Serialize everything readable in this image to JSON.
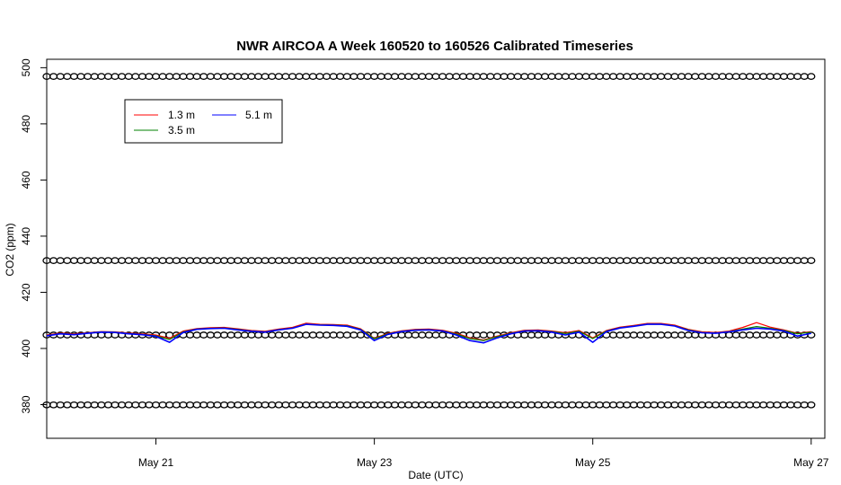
{
  "chart_data": {
    "type": "line",
    "title": "NWR AIRCOA A  Week 160520 to 160526  Calibrated Timeseries",
    "xlabel": "Date (UTC)",
    "ylabel": "CO2 (ppm)",
    "x_ticks": [
      "May 21",
      "May 23",
      "May 25",
      "May 27"
    ],
    "y_ticks": [
      "380",
      "400",
      "420",
      "440",
      "460",
      "480",
      "500"
    ],
    "xlim": [
      "2016-05-20T00:00",
      "2016-05-27T03:00"
    ],
    "ylim": [
      368,
      503
    ],
    "legend": {
      "position": "top-left",
      "entries": [
        "1.3 m",
        "3.5 m",
        "5.1 m"
      ]
    },
    "series": [
      {
        "name": "1.3 m",
        "color": "#ff0000",
        "points": [
          [
            "2016-05-20T00:00",
            404.8
          ],
          [
            "2016-05-20T03:00",
            405.5
          ],
          [
            "2016-05-20T06:00",
            405.2
          ],
          [
            "2016-05-20T09:00",
            405.6
          ],
          [
            "2016-05-20T12:00",
            406.0
          ],
          [
            "2016-05-20T15:00",
            405.9
          ],
          [
            "2016-05-20T18:00",
            405.5
          ],
          [
            "2016-05-20T21:00",
            405.2
          ],
          [
            "2016-05-21T00:00",
            404.8
          ],
          [
            "2016-05-21T03:00",
            403.6
          ],
          [
            "2016-05-21T06:00",
            406.2
          ],
          [
            "2016-05-21T09:00",
            407.1
          ],
          [
            "2016-05-21T12:00",
            407.4
          ],
          [
            "2016-05-21T15:00",
            407.5
          ],
          [
            "2016-05-21T18:00",
            407.0
          ],
          [
            "2016-05-21T21:00",
            406.4
          ],
          [
            "2016-05-22T00:00",
            406.1
          ],
          [
            "2016-05-22T03:00",
            406.9
          ],
          [
            "2016-05-22T06:00",
            407.5
          ],
          [
            "2016-05-22T09:00",
            409.0
          ],
          [
            "2016-05-22T12:00",
            408.6
          ],
          [
            "2016-05-22T15:00",
            408.5
          ],
          [
            "2016-05-22T18:00",
            408.3
          ],
          [
            "2016-05-22T21:00",
            407.0
          ],
          [
            "2016-05-23T00:00",
            403.6
          ],
          [
            "2016-05-23T03:00",
            405.4
          ],
          [
            "2016-05-23T06:00",
            406.3
          ],
          [
            "2016-05-23T09:00",
            406.8
          ],
          [
            "2016-05-23T12:00",
            406.9
          ],
          [
            "2016-05-23T15:00",
            406.5
          ],
          [
            "2016-05-23T18:00",
            405.4
          ],
          [
            "2016-05-23T21:00",
            403.8
          ],
          [
            "2016-05-24T00:00",
            403.0
          ],
          [
            "2016-05-24T03:00",
            404.4
          ],
          [
            "2016-05-24T06:00",
            405.6
          ],
          [
            "2016-05-24T09:00",
            406.5
          ],
          [
            "2016-05-24T12:00",
            406.6
          ],
          [
            "2016-05-24T15:00",
            406.2
          ],
          [
            "2016-05-24T18:00",
            405.6
          ],
          [
            "2016-05-24T21:00",
            406.4
          ],
          [
            "2016-05-25T00:00",
            403.8
          ],
          [
            "2016-05-25T03:00",
            406.4
          ],
          [
            "2016-05-25T06:00",
            407.6
          ],
          [
            "2016-05-25T09:00",
            408.2
          ],
          [
            "2016-05-25T12:00",
            408.9
          ],
          [
            "2016-05-25T15:00",
            408.9
          ],
          [
            "2016-05-25T18:00",
            408.3
          ],
          [
            "2016-05-25T21:00",
            406.8
          ],
          [
            "2016-05-26T00:00",
            405.9
          ],
          [
            "2016-05-26T03:00",
            405.7
          ],
          [
            "2016-05-26T06:00",
            406.2
          ],
          [
            "2016-05-26T09:00",
            407.5
          ],
          [
            "2016-05-26T12:00",
            409.2
          ],
          [
            "2016-05-26T15:00",
            407.6
          ],
          [
            "2016-05-26T18:00",
            406.6
          ],
          [
            "2016-05-26T21:00",
            405.4
          ],
          [
            "2016-05-27T00:00",
            406.0
          ]
        ]
      },
      {
        "name": "3.5 m",
        "color": "#008000",
        "points": [
          [
            "2016-05-20T00:00",
            404.6
          ],
          [
            "2016-05-20T03:00",
            405.3
          ],
          [
            "2016-05-20T06:00",
            405.0
          ],
          [
            "2016-05-20T09:00",
            405.5
          ],
          [
            "2016-05-20T12:00",
            405.9
          ],
          [
            "2016-05-20T15:00",
            405.8
          ],
          [
            "2016-05-20T18:00",
            405.3
          ],
          [
            "2016-05-20T21:00",
            405.0
          ],
          [
            "2016-05-21T00:00",
            404.5
          ],
          [
            "2016-05-21T03:00",
            403.2
          ],
          [
            "2016-05-21T06:00",
            405.9
          ],
          [
            "2016-05-21T09:00",
            406.9
          ],
          [
            "2016-05-21T12:00",
            407.2
          ],
          [
            "2016-05-21T15:00",
            407.3
          ],
          [
            "2016-05-21T18:00",
            406.8
          ],
          [
            "2016-05-21T21:00",
            406.2
          ],
          [
            "2016-05-22T00:00",
            405.9
          ],
          [
            "2016-05-22T03:00",
            406.7
          ],
          [
            "2016-05-22T06:00",
            407.3
          ],
          [
            "2016-05-22T09:00",
            408.7
          ],
          [
            "2016-05-22T12:00",
            408.4
          ],
          [
            "2016-05-22T15:00",
            408.3
          ],
          [
            "2016-05-22T18:00",
            408.1
          ],
          [
            "2016-05-22T21:00",
            406.8
          ],
          [
            "2016-05-23T00:00",
            403.4
          ],
          [
            "2016-05-23T03:00",
            405.2
          ],
          [
            "2016-05-23T06:00",
            406.1
          ],
          [
            "2016-05-23T09:00",
            406.6
          ],
          [
            "2016-05-23T12:00",
            406.7
          ],
          [
            "2016-05-23T15:00",
            406.3
          ],
          [
            "2016-05-23T18:00",
            405.1
          ],
          [
            "2016-05-23T21:00",
            403.5
          ],
          [
            "2016-05-24T00:00",
            402.8
          ],
          [
            "2016-05-24T03:00",
            404.2
          ],
          [
            "2016-05-24T06:00",
            405.4
          ],
          [
            "2016-05-24T09:00",
            406.3
          ],
          [
            "2016-05-24T12:00",
            406.4
          ],
          [
            "2016-05-24T15:00",
            406.0
          ],
          [
            "2016-05-24T18:00",
            405.3
          ],
          [
            "2016-05-24T21:00",
            406.1
          ],
          [
            "2016-05-25T00:00",
            403.5
          ],
          [
            "2016-05-25T03:00",
            406.2
          ],
          [
            "2016-05-25T06:00",
            407.4
          ],
          [
            "2016-05-25T09:00",
            408.0
          ],
          [
            "2016-05-25T12:00",
            408.7
          ],
          [
            "2016-05-25T15:00",
            408.7
          ],
          [
            "2016-05-25T18:00",
            408.1
          ],
          [
            "2016-05-25T21:00",
            406.6
          ],
          [
            "2016-05-26T00:00",
            405.7
          ],
          [
            "2016-05-26T03:00",
            405.5
          ],
          [
            "2016-05-26T06:00",
            406.0
          ],
          [
            "2016-05-26T09:00",
            406.9
          ],
          [
            "2016-05-26T12:00",
            407.8
          ],
          [
            "2016-05-26T15:00",
            407.2
          ],
          [
            "2016-05-26T18:00",
            406.4
          ],
          [
            "2016-05-26T21:00",
            405.2
          ],
          [
            "2016-05-27T00:00",
            405.8
          ]
        ]
      },
      {
        "name": "5.1 m",
        "color": "#0000ff",
        "points": [
          [
            "2016-05-20T00:00",
            404.5
          ],
          [
            "2016-05-20T03:00",
            405.2
          ],
          [
            "2016-05-20T06:00",
            404.9
          ],
          [
            "2016-05-20T09:00",
            405.4
          ],
          [
            "2016-05-20T12:00",
            405.8
          ],
          [
            "2016-05-20T15:00",
            405.7
          ],
          [
            "2016-05-20T18:00",
            405.2
          ],
          [
            "2016-05-20T21:00",
            404.9
          ],
          [
            "2016-05-21T00:00",
            404.3
          ],
          [
            "2016-05-21T03:00",
            402.2
          ],
          [
            "2016-05-21T06:00",
            405.7
          ],
          [
            "2016-05-21T09:00",
            406.8
          ],
          [
            "2016-05-21T12:00",
            407.1
          ],
          [
            "2016-05-21T15:00",
            407.2
          ],
          [
            "2016-05-21T18:00",
            406.6
          ],
          [
            "2016-05-21T21:00",
            406.1
          ],
          [
            "2016-05-22T00:00",
            405.8
          ],
          [
            "2016-05-22T03:00",
            406.6
          ],
          [
            "2016-05-22T06:00",
            407.2
          ],
          [
            "2016-05-22T09:00",
            408.6
          ],
          [
            "2016-05-22T12:00",
            408.3
          ],
          [
            "2016-05-22T15:00",
            408.2
          ],
          [
            "2016-05-22T18:00",
            407.9
          ],
          [
            "2016-05-22T21:00",
            406.6
          ],
          [
            "2016-05-23T00:00",
            402.8
          ],
          [
            "2016-05-23T03:00",
            405.0
          ],
          [
            "2016-05-23T06:00",
            406.0
          ],
          [
            "2016-05-23T09:00",
            406.5
          ],
          [
            "2016-05-23T12:00",
            406.6
          ],
          [
            "2016-05-23T15:00",
            406.2
          ],
          [
            "2016-05-23T18:00",
            404.8
          ],
          [
            "2016-05-23T21:00",
            402.8
          ],
          [
            "2016-05-24T00:00",
            402.0
          ],
          [
            "2016-05-24T03:00",
            403.8
          ],
          [
            "2016-05-24T06:00",
            405.2
          ],
          [
            "2016-05-24T09:00",
            406.2
          ],
          [
            "2016-05-24T12:00",
            406.3
          ],
          [
            "2016-05-24T15:00",
            405.8
          ],
          [
            "2016-05-24T18:00",
            404.8
          ],
          [
            "2016-05-24T21:00",
            405.8
          ],
          [
            "2016-05-25T00:00",
            402.2
          ],
          [
            "2016-05-25T03:00",
            406.0
          ],
          [
            "2016-05-25T06:00",
            407.3
          ],
          [
            "2016-05-25T09:00",
            407.9
          ],
          [
            "2016-05-25T12:00",
            408.6
          ],
          [
            "2016-05-25T15:00",
            408.6
          ],
          [
            "2016-05-25T18:00",
            408.0
          ],
          [
            "2016-05-25T21:00",
            406.4
          ],
          [
            "2016-05-26T00:00",
            405.6
          ],
          [
            "2016-05-26T03:00",
            405.4
          ],
          [
            "2016-05-26T06:00",
            405.9
          ],
          [
            "2016-05-26T09:00",
            406.6
          ],
          [
            "2016-05-26T12:00",
            407.2
          ],
          [
            "2016-05-26T15:00",
            406.9
          ],
          [
            "2016-05-26T18:00",
            406.2
          ],
          [
            "2016-05-26T21:00",
            404.4
          ],
          [
            "2016-05-27T00:00",
            405.4
          ]
        ]
      }
    ],
    "calibration_markers": {
      "symbol": "circle",
      "color": "#000000",
      "levels": [
        496.9,
        431.3,
        404.8,
        379.9
      ],
      "x_start": "2016-05-20T00:00",
      "x_end": "2016-05-27T00:00",
      "interval_hours": 1.5
    }
  }
}
